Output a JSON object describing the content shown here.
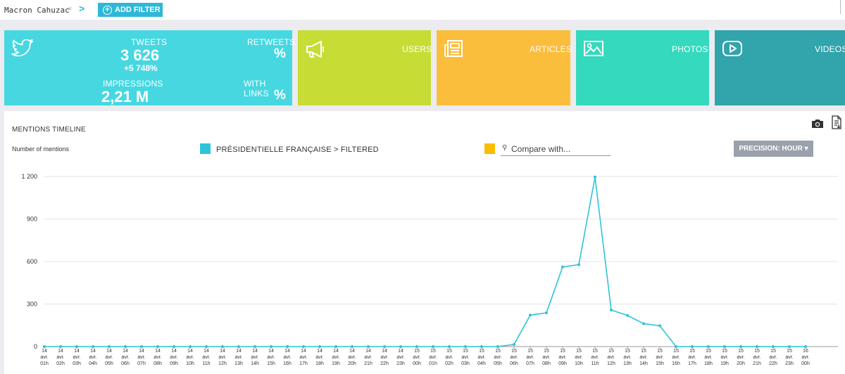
{
  "topbar": {
    "query": "Macron Cahuzac",
    "remove_glyph": "×",
    "next_glyph": ">",
    "add_filter_label": "ADD FILTER"
  },
  "tiles": {
    "twitter": {
      "icon": "twitter-icon",
      "tweets_label": "TWEETS",
      "tweets_value": "3 626",
      "tweets_change": "+5 748%",
      "retweets_label": "RETWEETS",
      "retweets_value": "%",
      "impressions_label": "IMPRESSIONS",
      "impressions_value": "2,21 M",
      "links_label": "WITH LINKS",
      "links_value": "%",
      "color": "#47d7e1"
    },
    "users": {
      "label": "USERS",
      "icon": "megaphone-icon",
      "color": "#c7dd35"
    },
    "articles": {
      "label": "ARTICLES",
      "icon": "newspaper-icon",
      "color": "#fbbd3c"
    },
    "photos": {
      "label": "PHOTOS",
      "icon": "image-icon",
      "color": "#35d9bd"
    },
    "videos": {
      "label": "VIDEOS",
      "icon": "play-icon",
      "color": "#31a4ac"
    }
  },
  "timeline": {
    "title": "MENTIONS TIMELINE",
    "y_axis_label": "Number of mentions",
    "series_label": "PRÉSIDENTIELLE FRANÇAISE > FILTERED",
    "series_color": "#2ec4d8",
    "compare_color": "#fbbd00",
    "compare_placeholder": "Compare with...",
    "precision_label": "PRECISION: HOUR ▾",
    "camera_icon": "camera-icon",
    "export_icon": "export-icon"
  },
  "chart_data": {
    "type": "line",
    "ylim": [
      0,
      1200
    ],
    "y_ticks": [
      "0",
      "300",
      "600",
      "900",
      "1 200"
    ],
    "grid": true,
    "categories": [
      "14 avr. 01h",
      "14 avr. 02h",
      "14 avr. 03h",
      "14 avr. 04h",
      "14 avr. 05h",
      "14 avr. 06h",
      "14 avr. 07h",
      "14 avr. 08h",
      "14 avr. 09h",
      "14 avr. 10h",
      "14 avr. 11h",
      "14 avr. 12h",
      "14 avr. 13h",
      "14 avr. 14h",
      "14 avr. 15h",
      "14 avr. 16h",
      "14 avr. 17h",
      "14 avr. 18h",
      "14 avr. 19h",
      "14 avr. 20h",
      "14 avr. 21h",
      "14 avr. 22h",
      "14 avr. 23h",
      "15 avr. 00h",
      "15 avr. 01h",
      "15 avr. 02h",
      "15 avr. 03h",
      "15 avr. 04h",
      "15 avr. 05h",
      "15 avr. 06h",
      "15 avr. 07h",
      "15 avr. 08h",
      "15 avr. 09h",
      "15 avr. 10h",
      "15 avr. 11h",
      "15 avr. 12h",
      "15 avr. 13h",
      "15 avr. 14h",
      "15 avr. 15h",
      "15 avr. 16h",
      "15 avr. 17h",
      "15 avr. 18h",
      "15 avr. 19h",
      "15 avr. 20h",
      "15 avr. 21h",
      "15 avr. 22h",
      "15 avr. 23h",
      "16 avr. 00h"
    ],
    "series": [
      {
        "name": "PRÉSIDENTIELLE FRANÇAISE > FILTERED",
        "values": [
          0,
          0,
          0,
          0,
          0,
          0,
          0,
          0,
          0,
          0,
          0,
          0,
          0,
          0,
          0,
          0,
          0,
          0,
          0,
          0,
          0,
          0,
          0,
          0,
          0,
          0,
          0,
          0,
          0,
          15,
          222,
          238,
          562,
          578,
          1196,
          258,
          220,
          162,
          147,
          0,
          0,
          0,
          0,
          0,
          0,
          0,
          0,
          0
        ]
      }
    ]
  }
}
